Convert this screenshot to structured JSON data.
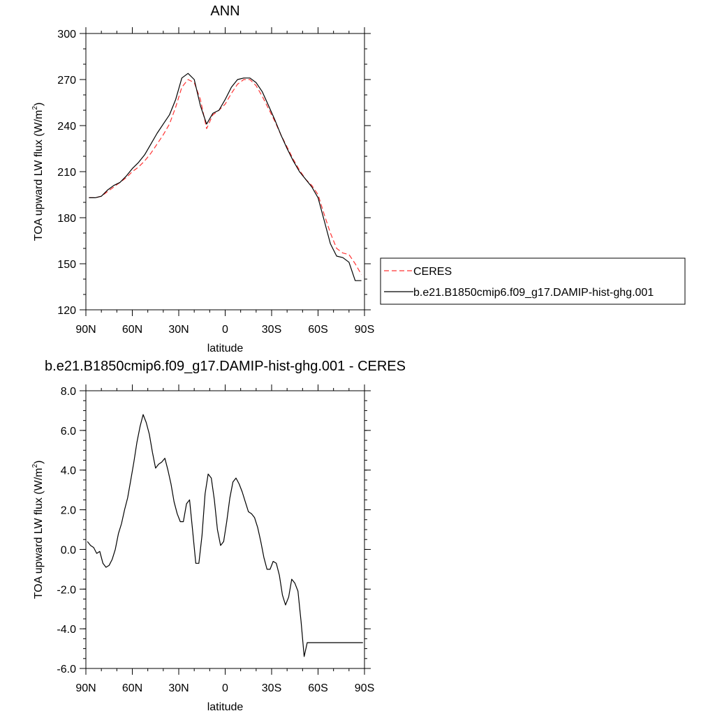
{
  "chart_data": [
    {
      "type": "line",
      "title": "ANN",
      "xlabel": "latitude",
      "ylabel": "TOA upward LW flux (W/m",
      "ylabel_sup": "2",
      "ylabel_close": ")",
      "xlim": [
        90,
        -90
      ],
      "ylim": [
        120,
        300
      ],
      "xticks": [
        90,
        60,
        30,
        0,
        -30,
        -60,
        -90
      ],
      "xtick_labels": [
        "90N",
        "60N",
        "30N",
        "0",
        "30S",
        "60S",
        "90S"
      ],
      "yticks": [
        120,
        150,
        180,
        210,
        240,
        270,
        300
      ],
      "ytick_labels": [
        "120",
        "150",
        "180",
        "210",
        "240",
        "270",
        "300"
      ],
      "legend_position": "right",
      "legend": [
        "CERES",
        "b.e21.B1850cmip6.f09_g17.DAMIP-hist-ghg.001"
      ],
      "series": [
        {
          "name": "CERES",
          "color": "#ff3333",
          "style": "dashed",
          "x": [
            88,
            84,
            80,
            76,
            72,
            68,
            64,
            60,
            56,
            52,
            48,
            44,
            40,
            36,
            32,
            28,
            24,
            20,
            16,
            12,
            8,
            4,
            0,
            -4,
            -8,
            -12,
            -16,
            -20,
            -24,
            -28,
            -32,
            -36,
            -40,
            -44,
            -48,
            -52,
            -56,
            -60,
            -64,
            -68,
            -72,
            -76,
            -80,
            -84,
            -88
          ],
          "values": [
            193,
            193,
            194,
            197,
            200,
            203,
            206,
            210,
            213,
            217,
            222,
            228,
            234,
            241,
            252,
            265,
            270,
            268,
            257,
            238,
            247,
            250,
            254,
            261,
            267,
            270,
            270,
            266,
            259,
            251,
            243,
            234,
            226,
            218,
            211,
            205,
            201,
            195,
            182,
            170,
            160,
            157,
            156,
            150,
            143
          ]
        },
        {
          "name": "b.e21.B1850cmip6.f09_g17.DAMIP-hist-ghg.001",
          "color": "#000000",
          "style": "solid",
          "x": [
            88,
            84,
            80,
            76,
            72,
            68,
            64,
            60,
            56,
            52,
            48,
            44,
            40,
            36,
            32,
            28,
            24,
            20,
            16,
            12,
            8,
            4,
            0,
            -4,
            -8,
            -12,
            -16,
            -20,
            -24,
            -28,
            -32,
            -36,
            -40,
            -44,
            -48,
            -52,
            -56,
            -60,
            -64,
            -68,
            -72,
            -76,
            -80,
            -84,
            -88
          ],
          "values": [
            193,
            193,
            194,
            198,
            201,
            203,
            207,
            212,
            216,
            221,
            228,
            235,
            241,
            247,
            257,
            271,
            274,
            270,
            253,
            241,
            248,
            250,
            257,
            265,
            270,
            271,
            271,
            268,
            262,
            253,
            244,
            234,
            225,
            217,
            210,
            205,
            200,
            193,
            178,
            163,
            155,
            154,
            151,
            139,
            139
          ]
        }
      ]
    },
    {
      "type": "line",
      "title": "b.e21.B1850cmip6.f09_g17.DAMIP-hist-ghg.001 - CERES",
      "xlabel": "latitude",
      "ylabel": "TOA upward LW flux (W/m",
      "ylabel_sup": "2",
      "ylabel_close": ")",
      "xlim": [
        90,
        -90
      ],
      "ylim": [
        -6,
        8
      ],
      "xticks": [
        90,
        60,
        30,
        0,
        -30,
        -60,
        -90
      ],
      "xtick_labels": [
        "90N",
        "60N",
        "30N",
        "0",
        "30S",
        "60S",
        "90S"
      ],
      "yticks": [
        -6,
        -4,
        -2,
        0,
        2,
        4,
        6,
        8
      ],
      "ytick_labels": [
        "-6.0",
        "-4.0",
        "-2.0",
        "0.0",
        "2.0",
        "4.0",
        "6.0",
        "8.0"
      ],
      "series": [
        {
          "color": "#000000",
          "style": "solid",
          "x": [
            89,
            87,
            85,
            83,
            81,
            79,
            77,
            75,
            73,
            71,
            69,
            67,
            65,
            63,
            61,
            59,
            57,
            55,
            53,
            51,
            49,
            47,
            45,
            43,
            41,
            39,
            37,
            35,
            33,
            31,
            29,
            27,
            25,
            23,
            21,
            19,
            17,
            15,
            13,
            11,
            9,
            7,
            5,
            3,
            1,
            -1,
            -3,
            -5,
            -7,
            -9,
            -11,
            -13,
            -15,
            -17,
            -19,
            -21,
            -23,
            -25,
            -27,
            -29,
            -31,
            -33,
            -35,
            -37,
            -39,
            -41,
            -43,
            -45,
            -47,
            -49,
            -51,
            -53,
            -55,
            -57,
            -59,
            -61,
            -63,
            -65,
            -67,
            -69,
            -71,
            -73,
            -75,
            -77,
            -79,
            -81,
            -83,
            -85,
            -87,
            -89
          ],
          "values": [
            0.4,
            0.2,
            0.1,
            -0.2,
            -0.1,
            -0.7,
            -0.9,
            -0.8,
            -0.5,
            0.0,
            0.8,
            1.3,
            2.0,
            2.6,
            3.5,
            4.4,
            5.4,
            6.2,
            6.8,
            6.4,
            5.8,
            4.9,
            4.1,
            4.3,
            4.4,
            4.6,
            4.0,
            3.3,
            2.4,
            1.8,
            1.4,
            1.4,
            2.3,
            2.5,
            0.9,
            -0.7,
            -0.7,
            0.7,
            2.8,
            3.8,
            3.6,
            2.5,
            1.0,
            0.2,
            0.4,
            1.4,
            2.6,
            3.4,
            3.6,
            3.3,
            2.9,
            2.4,
            1.9,
            1.8,
            1.6,
            1.1,
            0.4,
            -0.4,
            -1.0,
            -1.0,
            -0.6,
            -0.7,
            -1.3,
            -2.3,
            -2.8,
            -2.4,
            -1.5,
            -1.7,
            -2.1,
            -3.6,
            -5.4,
            -4.7,
            -4.7,
            -4.7,
            -4.7,
            -4.7,
            -4.7,
            -4.7,
            -4.7,
            -4.7,
            -4.7,
            -4.7,
            -4.7,
            -4.7,
            -4.7,
            -4.7,
            -4.7,
            -4.7,
            -4.7,
            -4.7
          ]
        }
      ]
    }
  ]
}
